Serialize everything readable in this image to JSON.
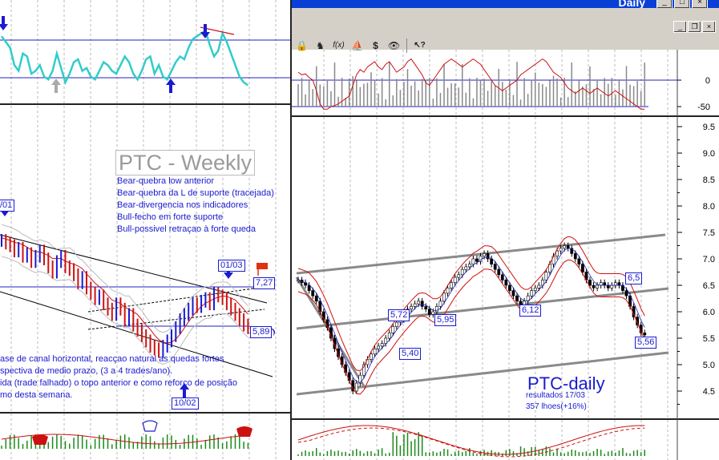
{
  "window": {
    "title": "Daily",
    "buttons": {
      "minimize": "_",
      "maximize": "□",
      "close": "×"
    },
    "mdi_buttons": {
      "minimize": "_",
      "restore": "❐",
      "close": "×"
    },
    "toolbar_icons": [
      "scale-icon",
      "zoom-icon",
      "function-icon",
      "sailboat-icon",
      "dollar-icon",
      "binoculars-icon",
      "help-pointer-icon"
    ],
    "toolbar_glyphs": [
      "🔒",
      "♞",
      "f(x)",
      "⛵",
      "$",
      "👁",
      "↖?"
    ]
  },
  "left": {
    "title": "PTC - Weekly",
    "notes": [
      "Bear-quebra low anterior",
      "Bear-quebra da L de suporte (tracejada)",
      "Bear-divergencia nos indicadores",
      "Bull-fecho em forte suporte",
      "Bull-possivel retraçao à forte queda"
    ],
    "bottom_notes": [
      "ase de canal horizontal, reacçao natural as quedas fortes",
      "spectiva de medio prazo, (3 a 4 trades/ano).",
      "ida (trade falhado) o topo anterior e como reforço de posição",
      "mo desta semana."
    ],
    "labels": {
      "date_top_left": "/01",
      "date_mid": "01/03",
      "date_bottom": "10/02",
      "price_high": "7,27",
      "price_low": "5,89"
    }
  },
  "right": {
    "title": "PTC-daily",
    "subtitle1": "resultados 17/03",
    "subtitle2": "357 lhoes(+16%)",
    "labels": {
      "l572": "5,72",
      "l595": "5,95",
      "l540": "5,40",
      "l612": "6,12",
      "l65": "6,5",
      "l556": "5,56"
    }
  },
  "chart_data": [
    {
      "type": "line",
      "name": "daily-price",
      "title": "PTC-daily",
      "ylim": [
        4.2,
        9.6
      ],
      "yticks": [
        "9.5",
        "9.0",
        "8.5",
        "8.0",
        "7.5",
        "7.0",
        "6.5",
        "6.0",
        "5.5",
        "5.0",
        "4.5"
      ],
      "x": [
        0,
        1,
        2,
        3,
        4,
        5,
        6,
        7,
        8,
        9,
        10,
        11,
        12,
        13,
        14,
        15,
        16,
        17,
        18,
        19,
        20,
        21,
        22,
        23,
        24,
        25,
        26,
        27,
        28,
        29,
        30,
        31,
        32,
        33,
        34,
        35,
        36,
        37,
        38,
        39,
        40,
        41,
        42,
        43,
        44,
        45,
        46,
        47,
        48,
        49,
        50,
        51,
        52,
        53,
        54,
        55,
        56,
        57,
        58,
        59,
        60,
        61,
        62,
        63,
        64,
        65,
        66,
        67,
        68,
        69,
        70,
        71,
        72,
        73,
        74,
        75,
        76,
        77,
        78,
        79,
        80,
        81,
        82,
        83,
        84,
        85,
        86,
        87,
        88,
        89,
        90,
        91,
        92,
        93,
        94,
        95,
        96,
        97,
        98,
        99,
        100,
        101,
        102,
        103,
        104,
        105,
        106,
        107,
        108,
        109,
        110,
        111,
        112,
        113,
        114,
        115,
        116,
        117,
        118,
        119
      ],
      "values": [
        6.6,
        6.55,
        6.5,
        6.4,
        6.3,
        6.2,
        6.0,
        5.85,
        5.7,
        5.5,
        5.3,
        5.15,
        5.0,
        4.85,
        4.7,
        4.5,
        4.65,
        4.8,
        5.0,
        5.1,
        5.2,
        5.3,
        5.35,
        5.4,
        5.5,
        5.6,
        5.72,
        5.8,
        5.85,
        5.95,
        6.05,
        6.1,
        6.15,
        6.2,
        6.1,
        6.05,
        5.95,
        6.0,
        6.1,
        6.2,
        6.35,
        6.45,
        6.55,
        6.65,
        6.7,
        6.8,
        6.85,
        6.9,
        7.0,
        6.95,
        7.05,
        7.1,
        7.0,
        6.9,
        6.8,
        6.7,
        6.6,
        6.5,
        6.4,
        6.3,
        6.2,
        6.12,
        6.2,
        6.3,
        6.4,
        6.45,
        6.5,
        6.6,
        6.75,
        6.9,
        7.05,
        7.15,
        7.2,
        7.25,
        7.2,
        7.1,
        7.0,
        6.9,
        6.75,
        6.6,
        6.5,
        6.45,
        6.5,
        6.55,
        6.5,
        6.45,
        6.5,
        6.55,
        6.5,
        6.4,
        6.3,
        6.1,
        5.9,
        5.75,
        5.6,
        5.56,
        5.6,
        5.6,
        5.6,
        5.6,
        5.6,
        5.6,
        5.6,
        5.6,
        5.6,
        5.6,
        5.6,
        5.6,
        5.6,
        5.6,
        5.6,
        5.6,
        5.6,
        5.6,
        5.6,
        5.6,
        5.6,
        5.6,
        5.6,
        5.6
      ],
      "visible_count": 96
    },
    {
      "type": "line",
      "name": "weekly-price",
      "title": "PTC - Weekly",
      "x": [
        0,
        1,
        2,
        3,
        4,
        5,
        6,
        7,
        8,
        9,
        10,
        11,
        12,
        13,
        14,
        15,
        16,
        17,
        18,
        19,
        20,
        21,
        22,
        23,
        24,
        25,
        26,
        27,
        28,
        29,
        30,
        31,
        32,
        33,
        34,
        35,
        36,
        37,
        38,
        39,
        40,
        41,
        42,
        43,
        44,
        45,
        46,
        47,
        48,
        49,
        50,
        51,
        52,
        53,
        54,
        55,
        56,
        57,
        58
      ],
      "values": [
        7.5,
        7.45,
        7.4,
        7.3,
        7.35,
        7.2,
        7.25,
        7.1,
        7.2,
        7.3,
        7.15,
        7.0,
        6.9,
        7.1,
        7.2,
        7.0,
        6.95,
        6.85,
        6.7,
        6.8,
        6.6,
        6.5,
        6.4,
        6.45,
        6.3,
        6.2,
        6.1,
        6.3,
        6.2,
        6.0,
        6.1,
        5.9,
        5.8,
        5.7,
        5.6,
        5.5,
        5.45,
        5.4,
        5.5,
        5.6,
        5.7,
        5.85,
        6.0,
        6.1,
        6.2,
        6.3,
        6.25,
        6.35,
        6.4,
        6.3,
        6.5,
        6.45,
        6.4,
        6.3,
        6.2,
        6.1,
        6.0,
        5.9,
        5.85
      ],
      "ylim": [
        4.8,
        8.0
      ]
    },
    {
      "type": "line",
      "name": "weekly-oscillator",
      "x": [
        0,
        1,
        2,
        3,
        4,
        5,
        6,
        7,
        8,
        9,
        10,
        11,
        12,
        13,
        14,
        15,
        16,
        17,
        18,
        19,
        20,
        21,
        22,
        23,
        24,
        25,
        26,
        27,
        28,
        29,
        30,
        31,
        32,
        33,
        34,
        35,
        36,
        37,
        38,
        39,
        40,
        41,
        42,
        43,
        44,
        45,
        46,
        47,
        48,
        49,
        50,
        51,
        52,
        53,
        54,
        55,
        56,
        57,
        58
      ],
      "values": [
        90,
        80,
        70,
        40,
        30,
        60,
        55,
        25,
        30,
        40,
        20,
        15,
        30,
        60,
        35,
        10,
        25,
        45,
        50,
        30,
        35,
        20,
        15,
        30,
        45,
        40,
        30,
        25,
        40,
        55,
        45,
        25,
        15,
        30,
        50,
        55,
        25,
        40,
        20,
        15,
        30,
        45,
        55,
        50,
        70,
        85,
        90,
        95,
        100,
        75,
        55,
        65,
        95,
        80,
        60,
        40,
        20,
        10,
        5
      ],
      "ylim": [
        -20,
        120
      ]
    },
    {
      "type": "line",
      "name": "daily-oscillator",
      "yticks": [
        "0",
        "-50"
      ],
      "ylim": [
        -70,
        60
      ],
      "x": [
        0,
        1,
        2,
        3,
        4,
        5,
        6,
        7,
        8,
        9,
        10,
        11,
        12,
        13,
        14,
        15,
        16,
        17,
        18,
        19,
        20,
        21,
        22,
        23,
        24,
        25,
        26,
        27,
        28,
        29,
        30,
        31,
        32,
        33,
        34,
        35,
        36,
        37,
        38,
        39,
        40,
        41,
        42,
        43,
        44,
        45,
        46,
        47,
        48,
        49,
        50,
        51,
        52,
        53,
        54,
        55,
        56,
        57,
        58,
        59,
        60,
        61,
        62,
        63,
        64,
        65,
        66,
        67,
        68,
        69,
        70,
        71,
        72,
        73,
        74,
        75,
        76,
        77,
        78,
        79,
        80,
        81,
        82,
        83,
        84,
        85,
        86,
        87,
        88,
        89,
        90,
        91,
        92,
        93,
        94,
        95
      ],
      "values": [
        15,
        10,
        12,
        5,
        0,
        -20,
        -45,
        -55,
        -55,
        -50,
        -48,
        -45,
        -40,
        -35,
        -30,
        -10,
        10,
        20,
        15,
        25,
        30,
        35,
        25,
        20,
        30,
        35,
        25,
        15,
        20,
        25,
        35,
        40,
        30,
        20,
        10,
        -5,
        -10,
        0,
        10,
        20,
        30,
        35,
        40,
        35,
        30,
        25,
        30,
        35,
        40,
        35,
        30,
        20,
        10,
        0,
        -10,
        -15,
        -20,
        -15,
        -10,
        -5,
        0,
        10,
        15,
        20,
        25,
        30,
        35,
        40,
        35,
        25,
        15,
        10,
        5,
        -5,
        -15,
        -20,
        -25,
        -20,
        -15,
        -20,
        -25,
        -20,
        -15,
        -20,
        -25,
        -30,
        -25,
        -20,
        -25,
        -30,
        -35,
        -40,
        -45,
        -50,
        -55,
        -55
      ]
    }
  ]
}
